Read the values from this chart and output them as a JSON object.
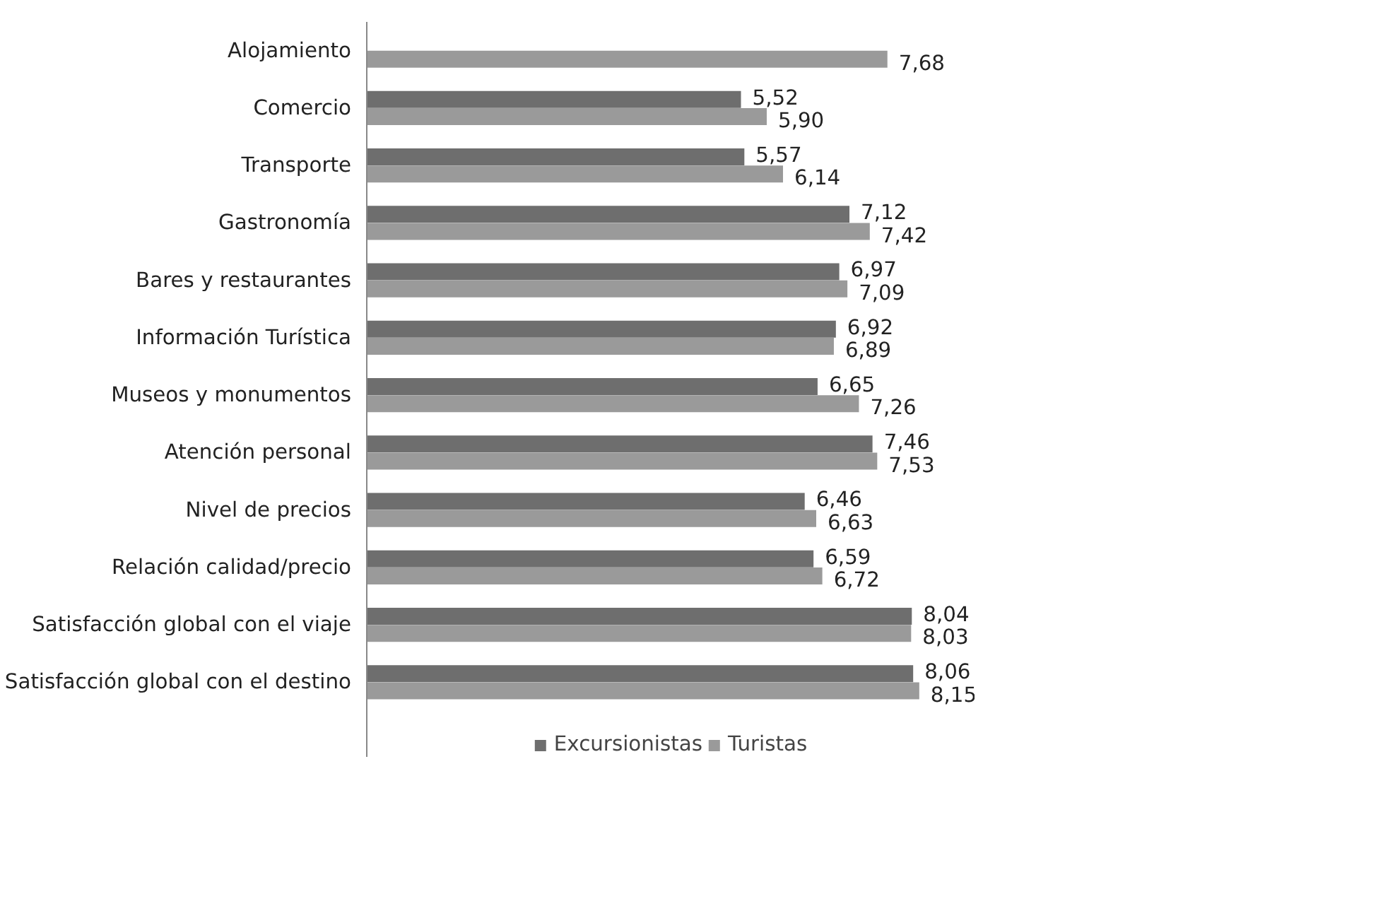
{
  "chart_data": {
    "type": "bar",
    "orientation": "horizontal",
    "categories": [
      "Alojamiento",
      "Comercio",
      "Transporte",
      "Gastronomía",
      "Bares y restaurantes",
      "Información Turística",
      "Museos y monumentos",
      "Atención personal",
      "Nivel de precios",
      "Relación calidad/precio",
      "Satisfacción global con el viaje",
      "Satisfacción global con el destino"
    ],
    "series": [
      {
        "name": "Excursionistas",
        "color": "#6e6e6e",
        "values": [
          null,
          5.52,
          5.57,
          7.12,
          6.97,
          6.92,
          6.65,
          7.46,
          6.46,
          6.59,
          8.04,
          8.06
        ],
        "value_labels": [
          null,
          "5,52",
          "5,57",
          "7,12",
          "6,97",
          "6,92",
          "6,65",
          "7,46",
          "6,46",
          "6,59",
          "8,04",
          "8,06"
        ]
      },
      {
        "name": "Turistas",
        "color": "#9a9a9a",
        "values": [
          7.68,
          5.9,
          6.14,
          7.42,
          7.09,
          6.89,
          7.26,
          7.53,
          6.63,
          6.72,
          8.03,
          8.15
        ],
        "value_labels": [
          "7,68",
          "5,90",
          "6,14",
          "7,42",
          "7,09",
          "6,89",
          "7,26",
          "7,53",
          "6,63",
          "6,72",
          "8,03",
          "8,15"
        ]
      }
    ],
    "legend": "bottom",
    "grid": false
  }
}
